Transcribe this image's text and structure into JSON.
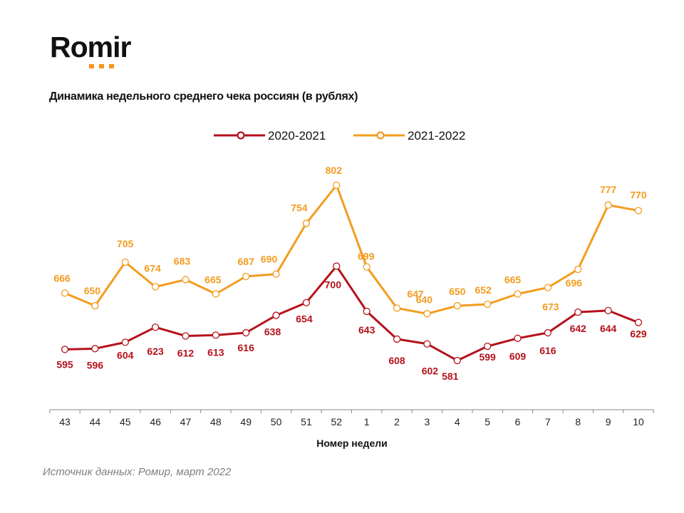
{
  "brand": {
    "logo_text": "Romir",
    "accent_color": "#f7941d"
  },
  "source_note": "Источник данных: Ромир, март 2022",
  "chart_data": {
    "type": "line",
    "title": "Динамика недельного среднего чека россиян (в рублях)",
    "xlabel": "Номер недели",
    "ylabel": "",
    "legend_position": "top-center",
    "grid": false,
    "ylim": [
      560,
      820
    ],
    "categories": [
      "43",
      "44",
      "45",
      "46",
      "47",
      "48",
      "49",
      "50",
      "51",
      "52",
      "1",
      "2",
      "3",
      "4",
      "5",
      "6",
      "7",
      "8",
      "9",
      "10"
    ],
    "series": [
      {
        "name": "2020-2021",
        "color": "#b5121b",
        "values": [
          595,
          596,
          604,
          623,
          612,
          613,
          616,
          638,
          654,
          700,
          643,
          608,
          602,
          581,
          599,
          609,
          616,
          642,
          644,
          629
        ]
      },
      {
        "name": "2021-2022",
        "color": "#f39c1e",
        "values": [
          666,
          650,
          705,
          674,
          683,
          665,
          687,
          690,
          754,
          802,
          699,
          647,
          640,
          650,
          652,
          665,
          673,
          696,
          777,
          770
        ]
      }
    ]
  }
}
